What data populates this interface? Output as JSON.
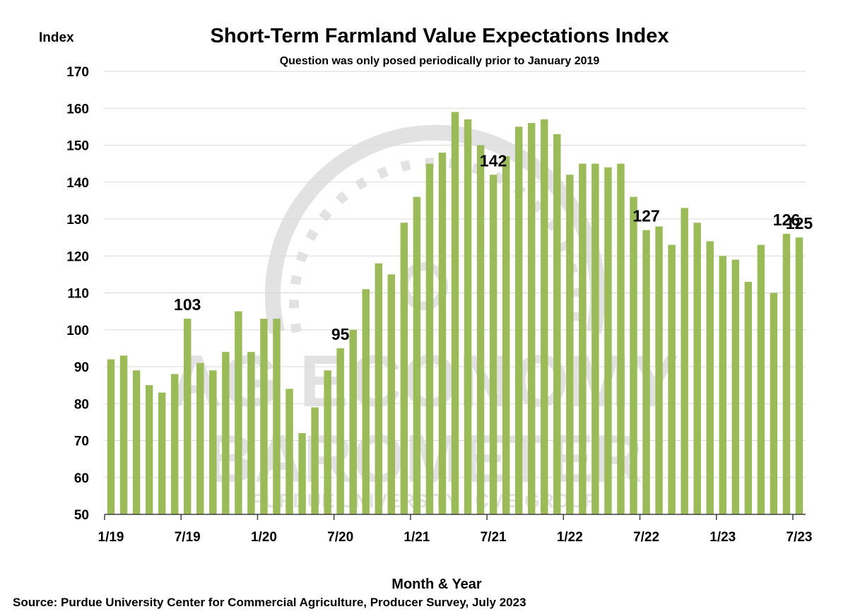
{
  "chart_data": {
    "type": "bar",
    "title": "Short-Term Farmland Value Expectations Index",
    "subtitle": "Question was only posed periodically prior to January 2019",
    "ylabel": "Index",
    "xlabel": "Month & Year",
    "source": "Source: Purdue University Center for Commercial Agriculture, Producer Survey, July 2023",
    "ylim": [
      50,
      170
    ],
    "yticks": [
      50,
      60,
      70,
      80,
      90,
      100,
      110,
      120,
      130,
      140,
      150,
      160,
      170
    ],
    "grid": true,
    "bar_color": "#9BBB59",
    "watermark": [
      "AG ECONOMY",
      "BAROMETER",
      "PURDUE UNIVERSITY / CME GROUP"
    ],
    "categories": [
      "1/19",
      "2/19",
      "3/19",
      "4/19",
      "5/19",
      "6/19",
      "7/19",
      "8/19",
      "9/19",
      "10/19",
      "11/19",
      "12/19",
      "1/20",
      "2/20",
      "3/20",
      "4/20",
      "5/20",
      "6/20",
      "7/20",
      "8/20",
      "9/20",
      "10/20",
      "11/20",
      "12/20",
      "1/21",
      "2/21",
      "3/21",
      "4/21",
      "5/21",
      "6/21",
      "7/21",
      "8/21",
      "9/21",
      "10/21",
      "11/21",
      "12/21",
      "1/22",
      "2/22",
      "3/22",
      "4/22",
      "5/22",
      "6/22",
      "7/22",
      "8/22",
      "9/22",
      "10/22",
      "11/22",
      "12/22",
      "1/23",
      "2/23",
      "3/23",
      "4/23",
      "5/23",
      "6/23",
      "7/23"
    ],
    "values": [
      92,
      93,
      89,
      85,
      83,
      88,
      103,
      91,
      89,
      94,
      105,
      94,
      103,
      103,
      84,
      72,
      79,
      89,
      95,
      100,
      111,
      118,
      115,
      129,
      136,
      145,
      148,
      159,
      157,
      150,
      142,
      147,
      155,
      156,
      157,
      153,
      142,
      145,
      145,
      144,
      145,
      136,
      127,
      128,
      123,
      133,
      129,
      124,
      120,
      119,
      113,
      123,
      110,
      126,
      125
    ],
    "xtick_labels": [
      {
        "index": 0,
        "label": "1/19"
      },
      {
        "index": 6,
        "label": "7/19"
      },
      {
        "index": 12,
        "label": "1/20"
      },
      {
        "index": 18,
        "label": "7/20"
      },
      {
        "index": 24,
        "label": "1/21"
      },
      {
        "index": 30,
        "label": "7/21"
      },
      {
        "index": 36,
        "label": "1/22"
      },
      {
        "index": 42,
        "label": "7/22"
      },
      {
        "index": 48,
        "label": "1/23"
      },
      {
        "index": 54,
        "label": "7/23"
      }
    ],
    "data_labels": [
      {
        "index": 6,
        "text": "103"
      },
      {
        "index": 18,
        "text": "95"
      },
      {
        "index": 30,
        "text": "142"
      },
      {
        "index": 42,
        "text": "127"
      },
      {
        "index": 53,
        "text": "126"
      },
      {
        "index": 54,
        "text": "125"
      }
    ]
  }
}
